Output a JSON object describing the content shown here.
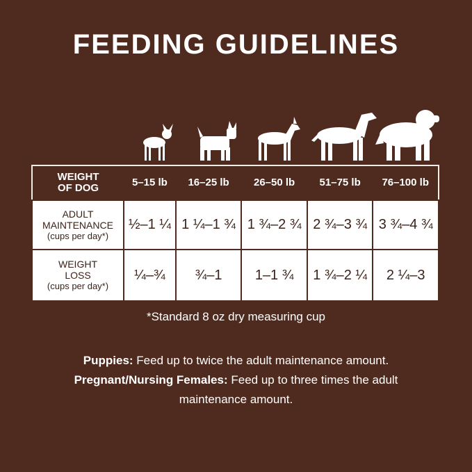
{
  "title": "FEEDING GUIDELINES",
  "table": {
    "header_label": [
      "WEIGHT",
      "OF DOG"
    ],
    "weights": [
      "5–15 lb",
      "16–25 lb",
      "26–50 lb",
      "51–75 lb",
      "76–100 lb"
    ],
    "rows": [
      {
        "label": [
          "ADULT",
          "MAINTENANCE"
        ],
        "unit": "(cups per day*)",
        "values": [
          "½–1 ¼",
          "1 ¼–1 ¾",
          "1 ¾–2 ¾",
          "2 ¾–3 ¾",
          "3 ¾–4 ¾"
        ]
      },
      {
        "label": [
          "WEIGHT",
          "LOSS"
        ],
        "unit": "(cups per day*)",
        "values": [
          "¼–¾",
          "¾–1",
          "1–1 ¾",
          "1 ¾–2 ¼",
          "2 ¼–3"
        ]
      }
    ]
  },
  "footnote": "*Standard 8 oz dry measuring cup",
  "puppies": {
    "label": "Puppies:",
    "text": " Feed up to twice the adult maintenance amount."
  },
  "pregnant": {
    "label": "Pregnant/Nursing Females:",
    "text": " Feed up to three times the adult maintenance amount."
  },
  "colors": {
    "background": "#4f2b1f",
    "table_cell": "#ffffff",
    "text_dark": "#3a2218"
  }
}
